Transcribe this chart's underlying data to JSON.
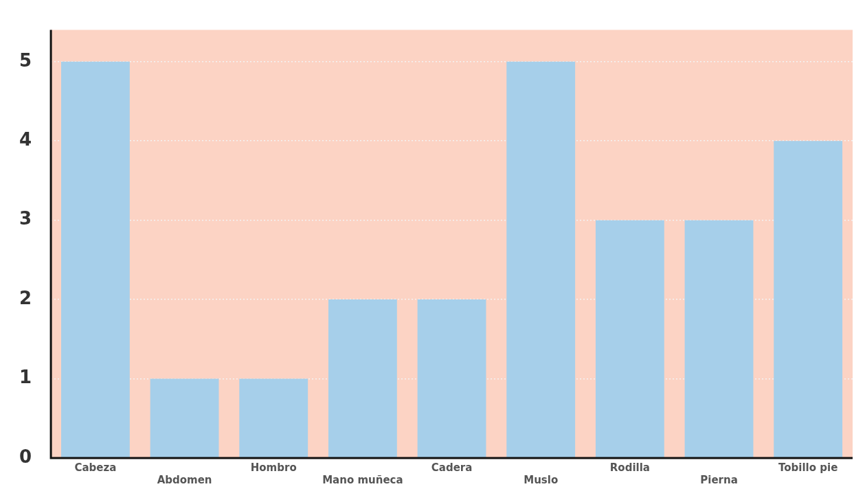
{
  "chart_data": {
    "type": "bar",
    "categories": [
      "Cabeza",
      "Abdomen",
      "Hombro",
      "Mano muñeca",
      "Cadera",
      "Muslo",
      "Rodilla",
      "Pierna",
      "Tobillo pie"
    ],
    "values": [
      5,
      1,
      1,
      2,
      2,
      5,
      3,
      3,
      4
    ],
    "color": "#a6cfea",
    "ylim": [
      0,
      5.4
    ],
    "yticks": [
      0,
      1,
      2,
      3,
      4,
      5
    ],
    "grid": "y",
    "legend": false
  }
}
